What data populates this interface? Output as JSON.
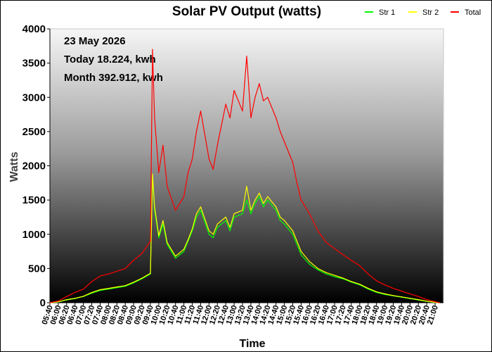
{
  "chart_data": {
    "type": "line",
    "title": "Solar PV Output (watts)",
    "xlabel": "Time",
    "ylabel": "Watts",
    "ylim": [
      0,
      4000
    ],
    "yticks": [
      0,
      500,
      1000,
      1500,
      2000,
      2500,
      3000,
      3500,
      4000
    ],
    "xlim": [
      "05:40",
      "21:20"
    ],
    "x_tick_labels": [
      "05:40",
      "06:00",
      "06:20",
      "06:40",
      "07:00",
      "07:20",
      "07:40",
      "08:00",
      "08:20",
      "08:40",
      "09:00",
      "09:20",
      "09:40",
      "10:00",
      "10:20",
      "10:40",
      "11:00",
      "11:20",
      "11:40",
      "12:00",
      "12:20",
      "12:40",
      "13:00",
      "13:20",
      "13:40",
      "14:00",
      "14:20",
      "14:40",
      "15:00",
      "15:20",
      "15:40",
      "16:00",
      "16:20",
      "16:40",
      "17:00",
      "17:20",
      "17:40",
      "18:00",
      "18:20",
      "18:40",
      "19:00",
      "19:20",
      "19:40",
      "20:00",
      "20:20",
      "20:40",
      "21:00"
    ],
    "legend_position": "top-right",
    "annotations": [
      "23 May 2026",
      "Today 18.224, kwh",
      "Month 392.912, kwh"
    ],
    "x": [
      "05:40",
      "06:00",
      "06:20",
      "06:40",
      "07:00",
      "07:20",
      "07:40",
      "08:00",
      "08:20",
      "08:40",
      "09:00",
      "09:20",
      "09:40",
      "09:45",
      "09:50",
      "10:00",
      "10:10",
      "10:20",
      "10:40",
      "11:00",
      "11:10",
      "11:20",
      "11:30",
      "11:40",
      "12:00",
      "12:10",
      "12:20",
      "12:40",
      "12:50",
      "13:00",
      "13:20",
      "13:30",
      "13:40",
      "13:50",
      "14:00",
      "14:10",
      "14:20",
      "14:40",
      "14:50",
      "15:00",
      "15:20",
      "15:30",
      "15:40",
      "16:00",
      "16:20",
      "16:40",
      "17:00",
      "17:20",
      "17:40",
      "18:00",
      "18:20",
      "18:40",
      "19:00",
      "19:20",
      "19:40",
      "20:00",
      "20:20",
      "20:40",
      "21:00",
      "21:10"
    ],
    "series": [
      {
        "name": "Str 1",
        "color": "#00ff00",
        "values": [
          0,
          10,
          40,
          60,
          90,
          140,
          180,
          200,
          220,
          240,
          290,
          350,
          420,
          1850,
          1350,
          950,
          1150,
          850,
          650,
          750,
          900,
          1050,
          1250,
          1350,
          1000,
          950,
          1100,
          1200,
          1050,
          1250,
          1300,
          1500,
          1300,
          1450,
          1550,
          1400,
          1500,
          1350,
          1200,
          1150,
          1000,
          850,
          700,
          560,
          480,
          420,
          380,
          350,
          300,
          260,
          200,
          150,
          120,
          100,
          80,
          60,
          40,
          20,
          5,
          0
        ]
      },
      {
        "name": "Str 2",
        "color": "#ffff00",
        "values": [
          0,
          12,
          45,
          65,
          95,
          150,
          190,
          210,
          230,
          250,
          300,
          360,
          430,
          1880,
          1400,
          980,
          1200,
          880,
          680,
          780,
          920,
          1080,
          1300,
          1400,
          1050,
          1000,
          1150,
          1250,
          1100,
          1300,
          1350,
          1700,
          1350,
          1500,
          1600,
          1450,
          1550,
          1400,
          1250,
          1200,
          1050,
          900,
          750,
          600,
          500,
          440,
          400,
          360,
          310,
          270,
          210,
          160,
          130,
          105,
          85,
          65,
          45,
          22,
          6,
          0
        ]
      },
      {
        "name": "Total",
        "color": "#ff0000",
        "values": [
          0,
          25,
          90,
          150,
          200,
          310,
          390,
          420,
          460,
          500,
          620,
          720,
          900,
          3700,
          2700,
          1900,
          2300,
          1700,
          1350,
          1550,
          1900,
          2100,
          2500,
          2800,
          2100,
          1950,
          2300,
          2900,
          2700,
          3100,
          2800,
          3600,
          2700,
          3000,
          3200,
          2950,
          3000,
          2700,
          2500,
          2350,
          2050,
          1750,
          1500,
          1300,
          1050,
          880,
          790,
          700,
          620,
          540,
          420,
          320,
          260,
          210,
          170,
          130,
          90,
          45,
          15,
          0
        ]
      }
    ]
  }
}
